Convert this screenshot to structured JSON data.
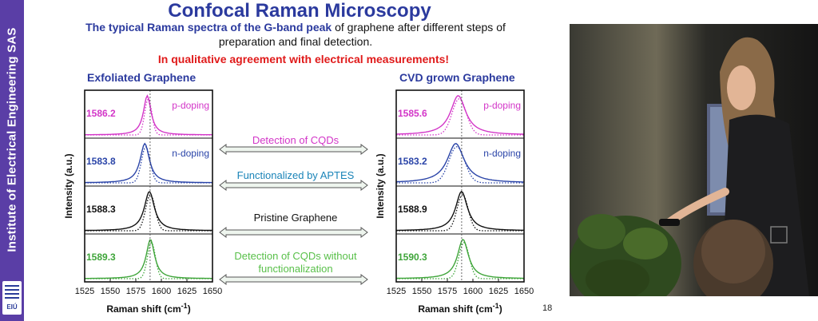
{
  "sidebar": {
    "institute": "Institute of Electrical Engineering SAS",
    "logo_text": "EIÚ"
  },
  "slide": {
    "title": "Confocal Raman Microscopy",
    "subtitle_highlight": "The typical Raman spectra of the G-band peak",
    "subtitle_rest": " of graphene after different steps of preparation and final detection.",
    "agreement": "In qualitative agreement with electrical measurements!",
    "left_title": "Exfoliated Graphene",
    "right_title": "CVD grown Graphene",
    "arrows": [
      {
        "label": "Detection of CQDs",
        "color": "#d336c8"
      },
      {
        "label": "Functionalized by APTES",
        "color": "#1a84b8"
      },
      {
        "label": "Pristine Graphene",
        "color": "#111111"
      },
      {
        "label": "Detection of CQDs without functionalization",
        "color": "#59c04a"
      }
    ],
    "slide_number": "18"
  },
  "chart_data": [
    {
      "type": "line",
      "title": "Exfoliated Graphene",
      "xlabel": "Raman shift (cm",
      "xlabel_sup": "-1",
      "xlabel_close": ")",
      "ylabel": "Intensity (a.u.)",
      "xlim": [
        1525,
        1650
      ],
      "xticks": [
        1525,
        1550,
        1575,
        1600,
        1625,
        1650
      ],
      "reference_line_x": 1589,
      "series": [
        {
          "peak_label": "1586.2",
          "annotation": "p-doping",
          "center": 1586.2,
          "width": 4.5,
          "color": "#d336c8"
        },
        {
          "peak_label": "1583.8",
          "annotation": "n-doping",
          "center": 1583.8,
          "width": 5.5,
          "color": "#2a44a8"
        },
        {
          "peak_label": "1588.3",
          "annotation": "",
          "center": 1588.3,
          "width": 6.0,
          "color": "#111111"
        },
        {
          "peak_label": "1589.3",
          "annotation": "",
          "center": 1589.3,
          "width": 5.0,
          "color": "#3fa53a"
        }
      ]
    },
    {
      "type": "line",
      "title": "CVD grown Graphene",
      "xlabel": "Raman shift (cm",
      "xlabel_sup": "-1",
      "xlabel_close": ")",
      "ylabel": "Intensity (a.u.)",
      "xlim": [
        1525,
        1650
      ],
      "xticks": [
        1525,
        1550,
        1575,
        1600,
        1625,
        1650
      ],
      "reference_line_x": 1589,
      "series": [
        {
          "peak_label": "1585.6",
          "annotation": "p-doping",
          "center": 1585.6,
          "width": 9.0,
          "color": "#d336c8"
        },
        {
          "peak_label": "1583.2",
          "annotation": "n-doping",
          "center": 1583.2,
          "width": 10.0,
          "color": "#2a44a8"
        },
        {
          "peak_label": "1588.9",
          "annotation": "",
          "center": 1588.9,
          "width": 7.0,
          "color": "#111111"
        },
        {
          "peak_label": "1590.3",
          "annotation": "",
          "center": 1590.3,
          "width": 6.5,
          "color": "#3fa53a"
        }
      ]
    }
  ]
}
